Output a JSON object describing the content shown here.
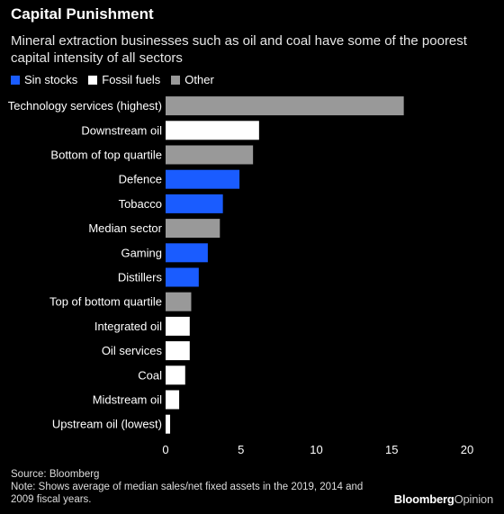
{
  "header": {
    "title": "Capital Punishment",
    "subtitle": "Mineral extraction businesses such as oil and coal have some of the poorest capital intensity of all sectors"
  },
  "legend": {
    "items": [
      {
        "label": "Sin stocks",
        "color": "#1a5cff"
      },
      {
        "label": "Fossil fuels",
        "color": "#ffffff"
      },
      {
        "label": "Other",
        "color": "#999999"
      }
    ]
  },
  "chart_data": {
    "type": "bar",
    "orientation": "horizontal",
    "categories": [
      "Technology services (highest)",
      "Downstream oil",
      "Bottom of top quartile",
      "Defence",
      "Tobacco",
      "Median sector",
      "Gaming",
      "Distillers",
      "Top of bottom quartile",
      "Integrated oil",
      "Oil services",
      "Coal",
      "Midstream oil",
      "Upstream oil (lowest)"
    ],
    "values": [
      15.8,
      6.2,
      5.8,
      4.9,
      3.8,
      3.6,
      2.8,
      2.2,
      1.7,
      1.6,
      1.6,
      1.3,
      0.9,
      0.3
    ],
    "groups": [
      "Other",
      "Fossil fuels",
      "Other",
      "Sin stocks",
      "Sin stocks",
      "Other",
      "Sin stocks",
      "Sin stocks",
      "Other",
      "Fossil fuels",
      "Fossil fuels",
      "Fossil fuels",
      "Fossil fuels",
      "Fossil fuels"
    ],
    "xlim": [
      0,
      20
    ],
    "xticks": [
      0,
      5,
      10,
      15,
      20
    ],
    "grid": false
  },
  "footer": {
    "source": "Source: Bloomberg",
    "note": "Note: Shows average of median sales/net fixed assets in the 2019, 2014 and 2009 fiscal years.",
    "brand_main": "Bloomberg",
    "brand_op": "Opinion"
  }
}
